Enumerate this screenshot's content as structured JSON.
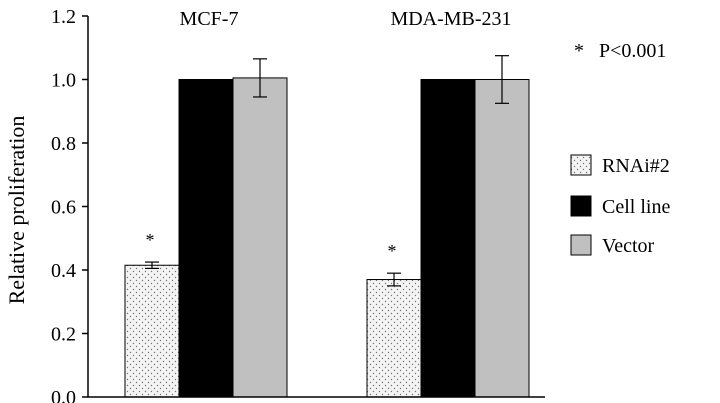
{
  "chart_data": {
    "type": "bar",
    "title": "",
    "xlabel": "",
    "ylabel": "Relative proliferation",
    "ylim": [
      0,
      1.2
    ],
    "yticks": [
      "0.0",
      "0.2",
      "0.4",
      "0.6",
      "0.8",
      "1.0",
      "1.2"
    ],
    "categories": [
      "MCF-7",
      "MDA-MB-231"
    ],
    "series": [
      {
        "name": "RNAi#2",
        "values": [
          0.415,
          0.37
        ],
        "errors": [
          0.01,
          0.02
        ],
        "color": "#f2f2f2",
        "pattern": "dots"
      },
      {
        "name": "Cell line",
        "values": [
          1.0,
          1.0
        ],
        "errors": [
          0,
          0
        ],
        "color": "#000000",
        "pattern": "solid"
      },
      {
        "name": "Vector",
        "values": [
          1.005,
          1.0
        ],
        "errors": [
          0.06,
          0.075
        ],
        "color": "#c0c0c0",
        "pattern": "solid"
      }
    ],
    "significance": {
      "series": "RNAi#2",
      "marker": "*"
    },
    "annotation": "*   P<0.001",
    "legend": "right",
    "grid": false
  }
}
